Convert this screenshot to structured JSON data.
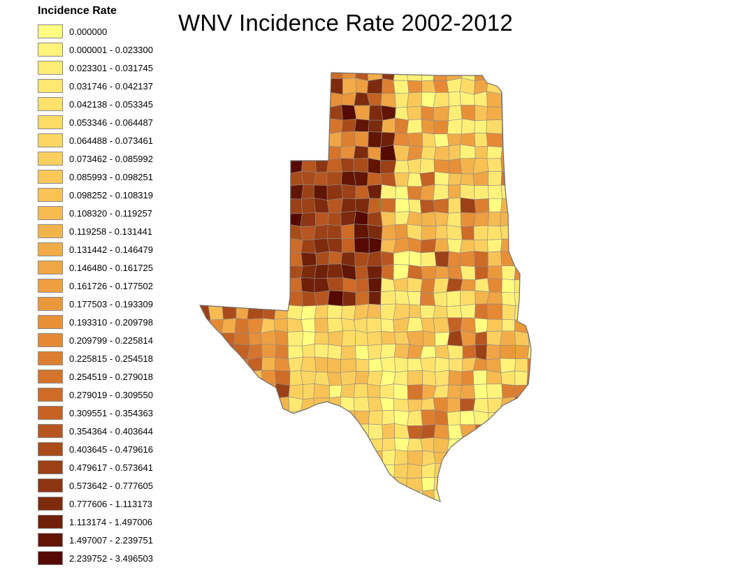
{
  "title": "WNV Incidence Rate 2002-2012",
  "legend": {
    "title": "Incidence Rate",
    "classes": [
      {
        "label": "0.000000",
        "color": "#ffff80"
      },
      {
        "label": "0.000001 - 0.023300",
        "color": "#fff37a"
      },
      {
        "label": "0.023301 - 0.031745",
        "color": "#ffee75"
      },
      {
        "label": "0.031746 - 0.042137",
        "color": "#ffe870"
      },
      {
        "label": "0.042138 - 0.053345",
        "color": "#fee26b"
      },
      {
        "label": "0.053346 - 0.064487",
        "color": "#fddc66"
      },
      {
        "label": "0.064488 - 0.073461",
        "color": "#fcd662"
      },
      {
        "label": "0.073462 - 0.085992",
        "color": "#fbcf5d"
      },
      {
        "label": "0.085993 - 0.098251",
        "color": "#f9c859"
      },
      {
        "label": "0.098252 - 0.108319",
        "color": "#f8c255"
      },
      {
        "label": "0.108320 - 0.119257",
        "color": "#f6bb51"
      },
      {
        "label": "0.119258 - 0.131441",
        "color": "#f4b44c"
      },
      {
        "label": "0.131442 - 0.146479",
        "color": "#f2ad48"
      },
      {
        "label": "0.146480 - 0.161725",
        "color": "#f0a644"
      },
      {
        "label": "0.161726 - 0.177502",
        "color": "#ee9f40"
      },
      {
        "label": "0.177503 - 0.193309",
        "color": "#eb983c"
      },
      {
        "label": "0.193310 - 0.209798",
        "color": "#e89038"
      },
      {
        "label": "0.209799 - 0.225814",
        "color": "#e58934"
      },
      {
        "label": "0.225815 - 0.254518",
        "color": "#dd7f30"
      },
      {
        "label": "0.254519 - 0.279018",
        "color": "#d5752c"
      },
      {
        "label": "0.279019 - 0.309550",
        "color": "#cd6b27"
      },
      {
        "label": "0.309551 - 0.354363",
        "color": "#c46123"
      },
      {
        "label": "0.354364 - 0.403644",
        "color": "#b8561f"
      },
      {
        "label": "0.403645 - 0.479616",
        "color": "#aa4b1a"
      },
      {
        "label": "0.479617 - 0.573641",
        "color": "#9c4016"
      },
      {
        "label": "0.573642 - 0.777605",
        "color": "#8d3512"
      },
      {
        "label": "0.777606 - 1.113173",
        "color": "#7e2a0d"
      },
      {
        "label": "1.113174 - 1.497006",
        "color": "#701f09"
      },
      {
        "label": "1.497007 - 2.239751",
        "color": "#621505"
      },
      {
        "label": "2.239752 - 3.496503",
        "color": "#560a02"
      }
    ]
  },
  "map": {
    "region_outline_color": "#6e6e6e",
    "county_border_color": "#8c8c8c"
  }
}
